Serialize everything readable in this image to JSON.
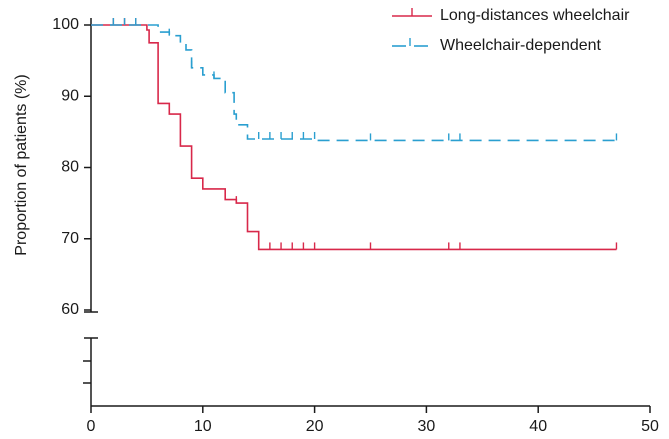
{
  "chart_data": {
    "type": "line",
    "title": "",
    "xlabel": "",
    "ylabel": "Proportion of patients (%)",
    "xlim": [
      0,
      50
    ],
    "ylim": [
      60,
      100
    ],
    "x_ticks": [
      "0",
      "10",
      "20",
      "30",
      "40",
      "50"
    ],
    "y_ticks": [
      "60",
      "70",
      "80",
      "90",
      "100"
    ],
    "axis_break": true,
    "grid": false,
    "legend_position": "top-right",
    "series": [
      {
        "name": "Long-distances wheelchair",
        "color": "#d8284a",
        "style": "solid-step",
        "steps": [
          [
            0,
            100
          ],
          [
            5,
            100
          ],
          [
            5,
            99.3
          ],
          [
            5.2,
            99.3
          ],
          [
            5.2,
            97.5
          ],
          [
            6,
            97.5
          ],
          [
            6,
            89
          ],
          [
            7,
            89
          ],
          [
            7,
            87.5
          ],
          [
            8,
            87.5
          ],
          [
            8,
            83
          ],
          [
            9,
            83
          ],
          [
            9,
            78.5
          ],
          [
            10,
            78.5
          ],
          [
            10,
            77
          ],
          [
            12,
            77
          ],
          [
            12,
            75.5
          ],
          [
            13,
            75.5
          ],
          [
            13,
            75
          ],
          [
            14,
            75
          ],
          [
            14,
            71
          ],
          [
            15,
            71
          ],
          [
            15,
            68.5
          ],
          [
            47,
            68.5
          ]
        ],
        "censored": [
          2,
          3,
          4,
          13,
          16,
          17,
          18,
          19,
          20,
          25,
          32,
          33,
          47
        ],
        "censored_y": [
          100,
          100,
          100,
          75,
          68.5,
          68.5,
          68.5,
          68.5,
          68.5,
          68.5,
          68.5,
          68.5,
          68.5
        ]
      },
      {
        "name": "Wheelchair-dependent",
        "color": "#2a9fd0",
        "style": "dashed-step",
        "steps": [
          [
            0,
            100
          ],
          [
            6,
            100
          ],
          [
            6,
            99
          ],
          [
            7,
            99
          ],
          [
            7,
            98.5
          ],
          [
            8,
            98.5
          ],
          [
            8,
            97.5
          ],
          [
            8.5,
            97.5
          ],
          [
            8.5,
            96.5
          ],
          [
            9,
            96.5
          ],
          [
            9,
            94
          ],
          [
            10,
            94
          ],
          [
            10,
            93
          ],
          [
            11,
            93
          ],
          [
            11,
            92.5
          ],
          [
            12,
            92.5
          ],
          [
            12,
            90.5
          ],
          [
            12.8,
            90.5
          ],
          [
            12.8,
            87.5
          ],
          [
            13,
            87.5
          ],
          [
            13,
            86
          ],
          [
            14,
            86
          ],
          [
            14,
            84
          ],
          [
            20,
            84
          ],
          [
            20,
            83.8
          ],
          [
            47,
            83.8
          ]
        ],
        "censored": [
          2,
          3,
          4,
          7,
          9,
          10,
          11,
          15,
          16,
          17,
          18,
          19,
          20,
          25,
          32,
          33,
          47
        ],
        "censored_y": [
          100,
          100,
          100,
          98.5,
          94,
          93,
          92.5,
          84,
          84,
          84,
          84,
          84,
          84,
          83.8,
          83.8,
          83.8,
          83.8
        ]
      }
    ]
  }
}
